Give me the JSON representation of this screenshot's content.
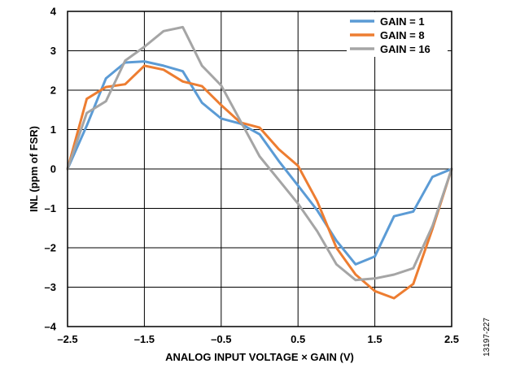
{
  "chart_data": {
    "type": "line",
    "xlabel": "ANALOG INPUT VOLTAGE × GAIN (V)",
    "ylabel": "INL (ppm of FSR)",
    "xlim": [
      -2.5,
      2.5
    ],
    "ylim": [
      -4,
      4
    ],
    "x_ticks": [
      -2.5,
      -1.5,
      -0.5,
      0.5,
      1.5,
      2.5
    ],
    "x_tick_labels": [
      "–2.5",
      "–1.5",
      "–0.5",
      "0.5",
      "1.5",
      "2.5"
    ],
    "y_ticks": [
      4,
      3,
      2,
      1,
      0,
      -1,
      -2,
      -3,
      -4
    ],
    "y_tick_labels": [
      "4",
      "3",
      "2",
      "1",
      "0",
      "–1",
      "–2",
      "–3",
      "–4"
    ],
    "grid": true,
    "legend_position": "top-right",
    "figure_id": "13197-227",
    "series": [
      {
        "name": "GAIN = 1",
        "color": "#5B9BD5",
        "points": [
          [
            -2.5,
            0
          ],
          [
            -2.25,
            1.1
          ],
          [
            -2.0,
            2.3
          ],
          [
            -1.75,
            2.7
          ],
          [
            -1.5,
            2.73
          ],
          [
            -1.25,
            2.62
          ],
          [
            -1.0,
            2.48
          ],
          [
            -0.75,
            1.68
          ],
          [
            -0.5,
            1.28
          ],
          [
            -0.25,
            1.15
          ],
          [
            0.0,
            0.88
          ],
          [
            0.25,
            0.2
          ],
          [
            0.5,
            -0.42
          ],
          [
            0.75,
            -1.05
          ],
          [
            1.0,
            -1.82
          ],
          [
            1.25,
            -2.42
          ],
          [
            1.5,
            -2.22
          ],
          [
            1.75,
            -1.2
          ],
          [
            2.0,
            -1.08
          ],
          [
            2.25,
            -0.2
          ],
          [
            2.5,
            0
          ]
        ]
      },
      {
        "name": "GAIN = 8",
        "color": "#ED7D31",
        "points": [
          [
            -2.5,
            0
          ],
          [
            -2.25,
            1.78
          ],
          [
            -2.0,
            2.08
          ],
          [
            -1.75,
            2.15
          ],
          [
            -1.5,
            2.62
          ],
          [
            -1.25,
            2.52
          ],
          [
            -1.0,
            2.22
          ],
          [
            -0.75,
            2.1
          ],
          [
            -0.5,
            1.62
          ],
          [
            -0.25,
            1.18
          ],
          [
            0.0,
            1.05
          ],
          [
            0.25,
            0.5
          ],
          [
            0.5,
            0.08
          ],
          [
            0.75,
            -0.82
          ],
          [
            1.0,
            -2.0
          ],
          [
            1.25,
            -2.68
          ],
          [
            1.5,
            -3.1
          ],
          [
            1.75,
            -3.28
          ],
          [
            2.0,
            -2.92
          ],
          [
            2.25,
            -1.52
          ],
          [
            2.5,
            0
          ]
        ]
      },
      {
        "name": "GAIN = 16",
        "color": "#A5A5A5",
        "points": [
          [
            -2.5,
            0
          ],
          [
            -2.25,
            1.42
          ],
          [
            -2.0,
            1.72
          ],
          [
            -1.75,
            2.75
          ],
          [
            -1.5,
            3.1
          ],
          [
            -1.25,
            3.5
          ],
          [
            -1.0,
            3.6
          ],
          [
            -0.75,
            2.62
          ],
          [
            -0.5,
            2.12
          ],
          [
            -0.25,
            1.22
          ],
          [
            0.0,
            0.32
          ],
          [
            0.25,
            -0.28
          ],
          [
            0.5,
            -0.88
          ],
          [
            0.75,
            -1.58
          ],
          [
            1.0,
            -2.42
          ],
          [
            1.25,
            -2.82
          ],
          [
            1.5,
            -2.78
          ],
          [
            1.75,
            -2.68
          ],
          [
            2.0,
            -2.52
          ],
          [
            2.25,
            -1.45
          ],
          [
            2.5,
            0
          ]
        ]
      }
    ]
  }
}
